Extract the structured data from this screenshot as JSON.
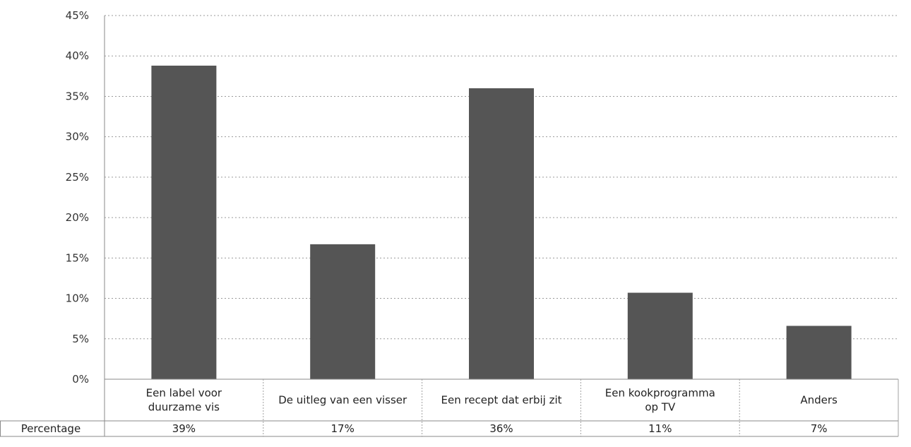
{
  "chart_data": {
    "type": "bar",
    "title": "",
    "xlabel": "",
    "ylabel": "",
    "categories": [
      [
        "Een label voor",
        "duurzame vis"
      ],
      [
        "De uitleg van een visser"
      ],
      [
        "Een recept dat erbij zit"
      ],
      [
        "Een kookprogramma",
        "op TV"
      ],
      [
        "Anders"
      ]
    ],
    "values": [
      38.8,
      16.7,
      36.0,
      10.7,
      6.6
    ],
    "ylim": [
      0,
      45
    ],
    "yticks": [
      0,
      5,
      10,
      15,
      20,
      25,
      30,
      35,
      40,
      45
    ],
    "ytick_labels": [
      "0%",
      "5%",
      "10%",
      "15%",
      "20%",
      "25%",
      "30%",
      "35%",
      "40%",
      "45%"
    ],
    "grid": true,
    "bar_color": "#555555",
    "data_table": {
      "row_label": "Percentage",
      "cells": [
        "39%",
        "17%",
        "36%",
        "11%",
        "7%"
      ]
    }
  }
}
